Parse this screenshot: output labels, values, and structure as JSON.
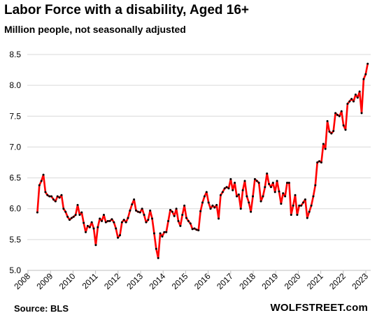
{
  "header": {
    "title": "Labor Force with a disability, Aged 16+",
    "subtitle": "Million people, not seasonally adjusted"
  },
  "footer": {
    "source": "Source: BLS",
    "brand": "WOLFSTREET.com"
  },
  "chart_data": {
    "type": "line",
    "title": "Labor Force with a disability, Aged 16+",
    "subtitle": "Million people, not seasonally adjusted",
    "xlabel": "",
    "ylabel": "",
    "ylim": [
      5.0,
      8.5
    ],
    "yticks": [
      "5.0",
      "5.5",
      "6.0",
      "6.5",
      "7.0",
      "7.5",
      "8.0",
      "8.5"
    ],
    "xticks": [
      "2008",
      "2009",
      "2010",
      "2011",
      "2012",
      "2013",
      "2014",
      "2015",
      "2016",
      "2017",
      "2018",
      "2019",
      "2020",
      "2021",
      "2022",
      "2023"
    ],
    "grid": "horizontal",
    "x_start": "2008-06",
    "x_end": "2023-02",
    "line_color": "#ff0000",
    "marker_color": "#000000",
    "series": [
      {
        "values": [
          5.94,
          6.38,
          6.45,
          6.55,
          6.27,
          6.22,
          6.2,
          6.2,
          6.15,
          6.12,
          6.2,
          6.18,
          6.22,
          6.0,
          5.95,
          5.87,
          5.82,
          5.85,
          5.87,
          5.9,
          6.06,
          5.9,
          5.94,
          5.77,
          5.62,
          5.72,
          5.7,
          5.78,
          5.68,
          5.41,
          5.7,
          5.84,
          5.8,
          5.9,
          5.78,
          5.8,
          5.8,
          5.83,
          5.78,
          5.68,
          5.53,
          5.57,
          5.78,
          5.82,
          5.78,
          5.85,
          5.97,
          6.07,
          6.15,
          5.97,
          5.95,
          5.94,
          6.0,
          5.9,
          5.78,
          5.82,
          5.97,
          5.84,
          5.6,
          5.35,
          5.2,
          5.6,
          5.55,
          5.62,
          5.62,
          5.8,
          5.98,
          5.95,
          5.88,
          6.0,
          5.8,
          5.72,
          5.9,
          6.05,
          5.85,
          5.8,
          5.76,
          5.67,
          5.68,
          5.66,
          5.65,
          5.96,
          6.1,
          6.2,
          6.27,
          6.1,
          6.0,
          6.05,
          6.02,
          6.06,
          5.84,
          6.22,
          6.27,
          6.33,
          6.35,
          6.33,
          6.48,
          6.3,
          6.42,
          6.2,
          6.23,
          6.0,
          6.3,
          6.45,
          6.2,
          6.1,
          5.95,
          6.2,
          6.48,
          6.45,
          6.42,
          6.12,
          6.2,
          6.35,
          6.57,
          6.4,
          6.35,
          6.42,
          6.27,
          6.45,
          6.28,
          6.08,
          6.25,
          6.2,
          6.42,
          6.42,
          5.9,
          6.05,
          6.22,
          5.9,
          6.05,
          6.05,
          6.1,
          6.15,
          5.85,
          5.95,
          6.05,
          6.2,
          6.38,
          6.75,
          6.77,
          6.75,
          7.05,
          6.97,
          7.42,
          7.25,
          7.22,
          7.26,
          7.55,
          7.52,
          7.5,
          7.58,
          7.35,
          7.28,
          7.7,
          7.74,
          7.78,
          7.74,
          7.85,
          7.8,
          7.9,
          7.55,
          8.1,
          8.18,
          8.35
        ]
      }
    ]
  }
}
